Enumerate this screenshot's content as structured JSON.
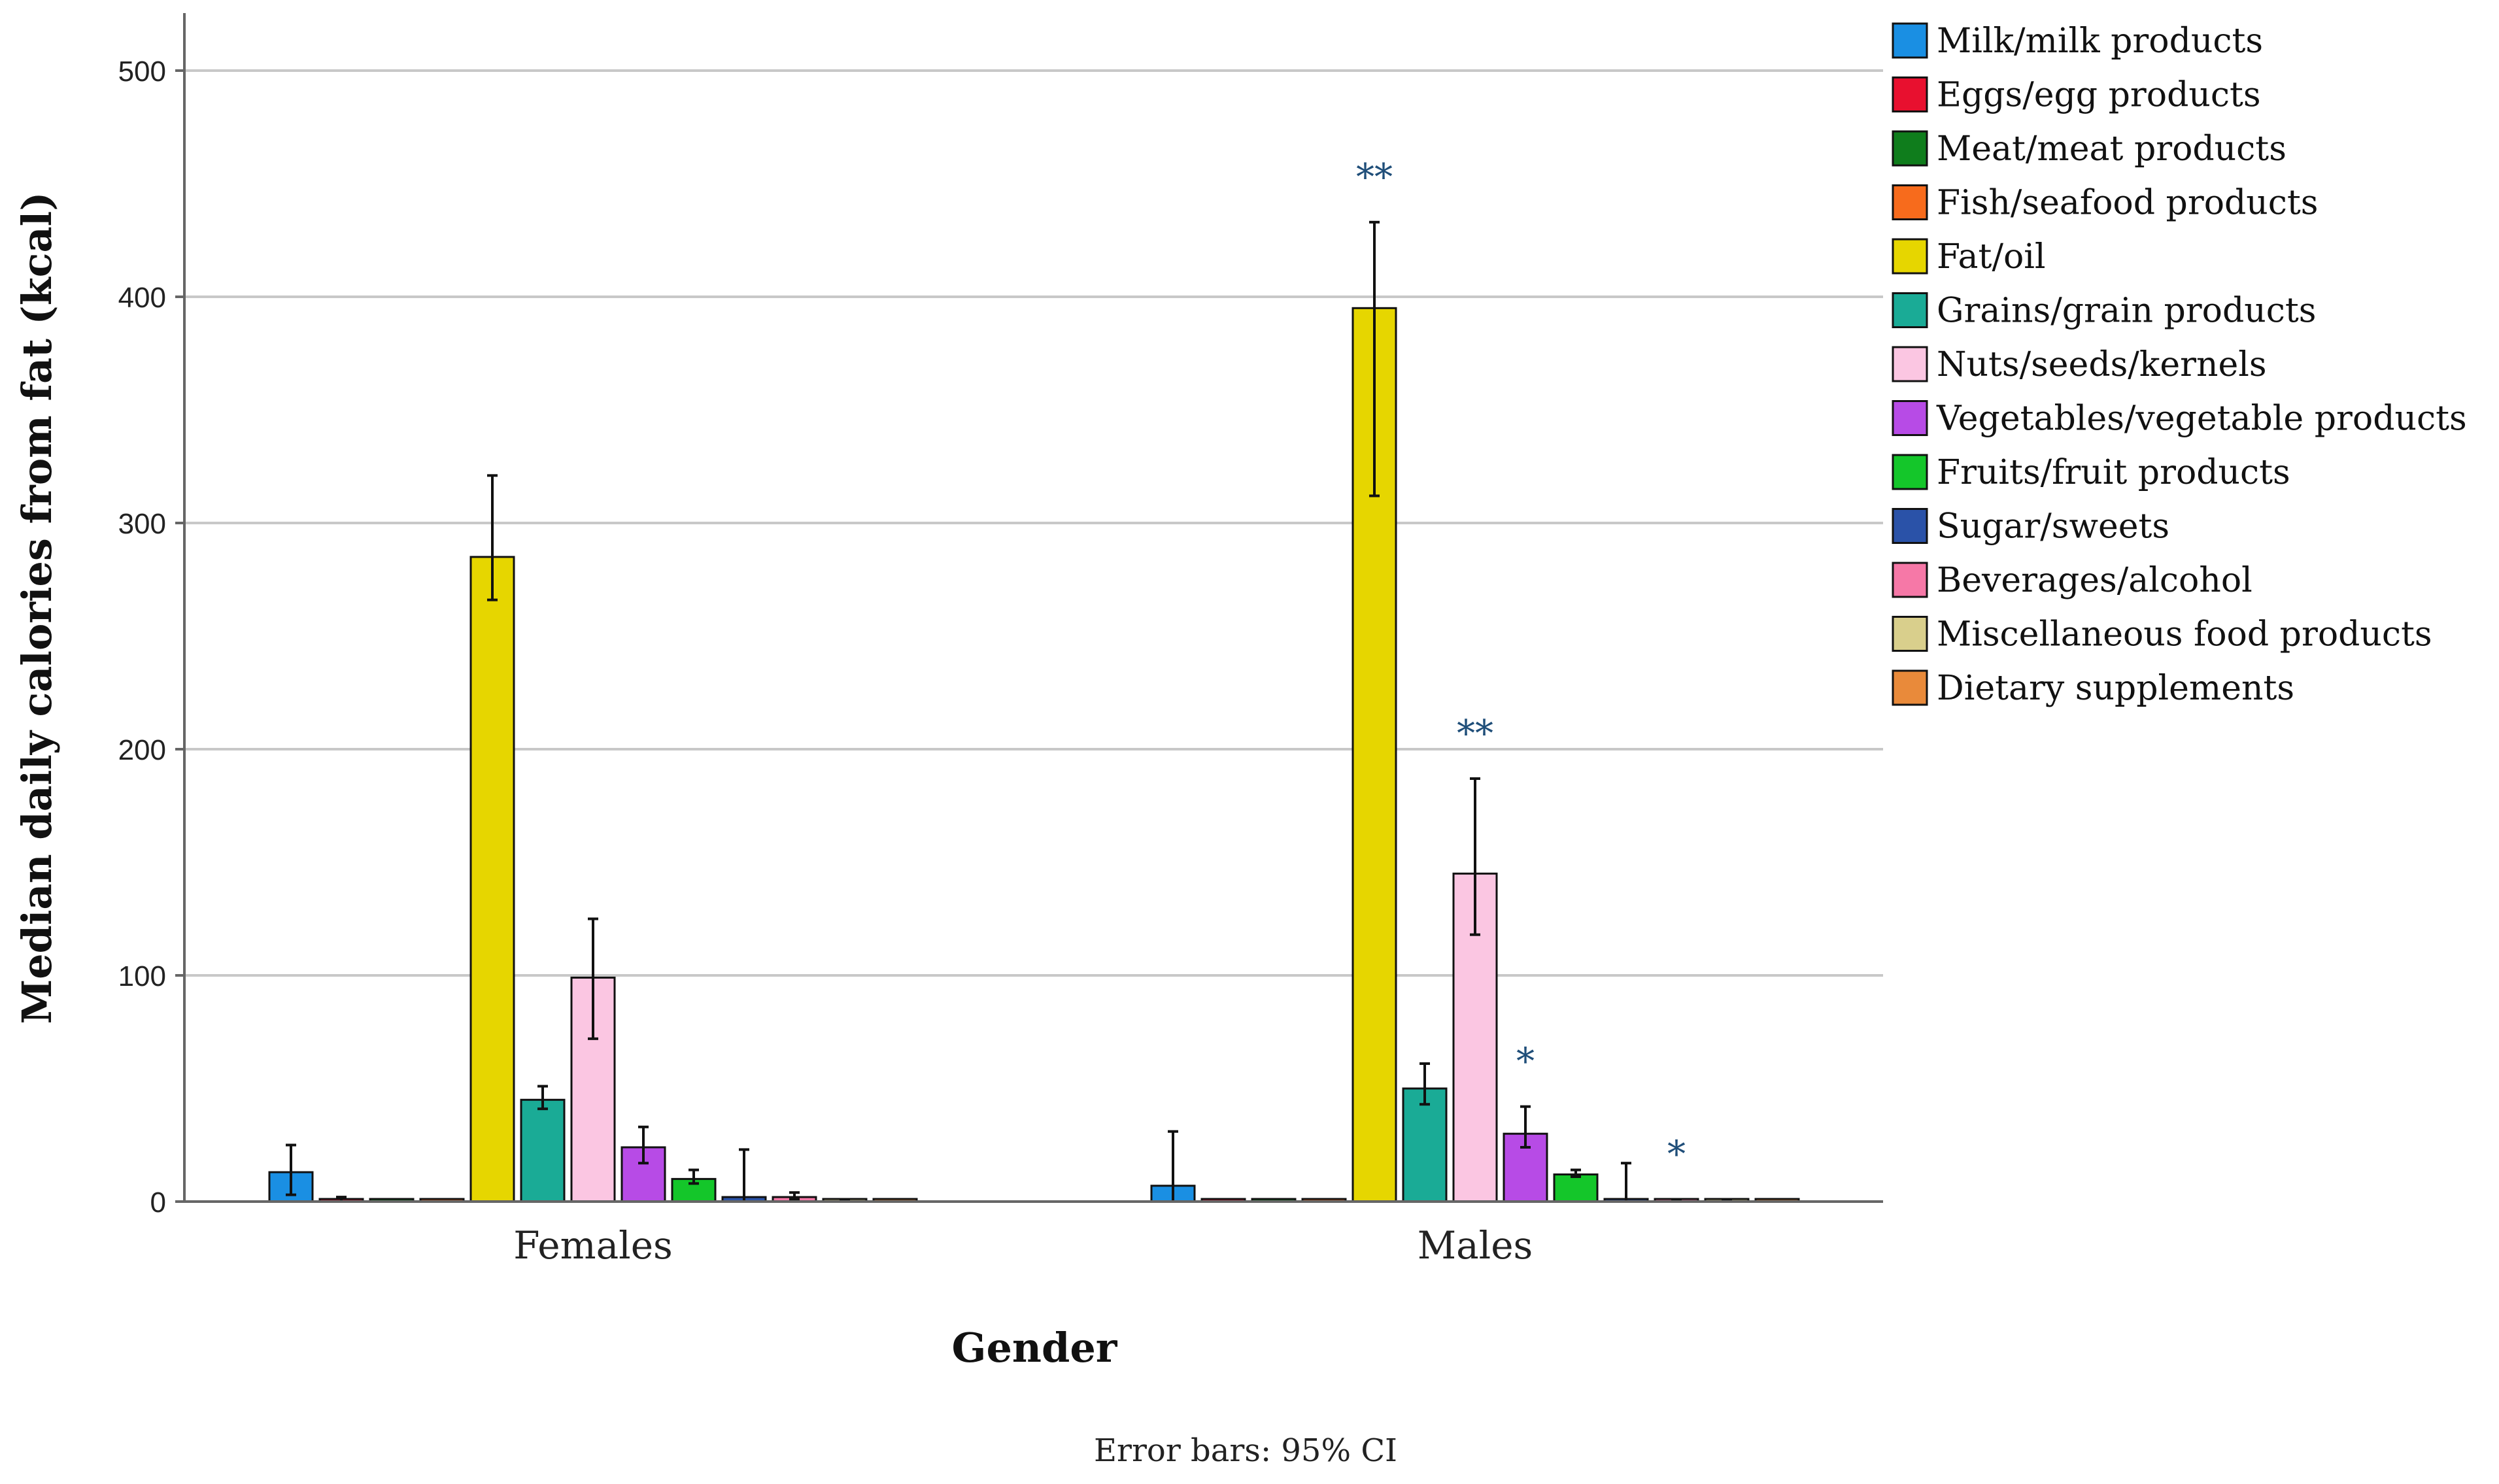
{
  "chart_data": {
    "type": "bar",
    "title": "",
    "xlabel": "Gender",
    "ylabel": "Median daily calories from fat (kcal)",
    "ylim": [
      0,
      525
    ],
    "yticks": [
      0,
      100,
      200,
      300,
      400,
      500
    ],
    "grid": true,
    "legend_position": "right",
    "note": "Error bars: 95% CI",
    "categories": [
      "Females",
      "Males"
    ],
    "series": [
      {
        "name": "Milk/milk products",
        "color": "#1a8fe3",
        "values": [
          13,
          7
        ],
        "ci_low": [
          3,
          0
        ],
        "ci_high": [
          25,
          31
        ],
        "sig": [
          "",
          ""
        ]
      },
      {
        "name": "Eggs/egg products",
        "color": "#e8102f",
        "values": [
          1,
          0
        ],
        "ci_low": [
          0,
          0
        ],
        "ci_high": [
          2,
          0
        ],
        "sig": [
          "",
          ""
        ]
      },
      {
        "name": "Meat/meat products",
        "color": "#0f7d1c",
        "values": [
          0,
          0
        ],
        "ci_low": [
          0,
          0
        ],
        "ci_high": [
          0,
          0
        ],
        "sig": [
          "",
          ""
        ]
      },
      {
        "name": "Fish/seafood products",
        "color": "#f76b1c",
        "values": [
          0,
          0
        ],
        "ci_low": [
          0,
          0
        ],
        "ci_high": [
          0,
          0
        ],
        "sig": [
          "",
          ""
        ]
      },
      {
        "name": "Fat/oil",
        "color": "#e6d600",
        "values": [
          285,
          395
        ],
        "ci_low": [
          266,
          312
        ],
        "ci_high": [
          321,
          433
        ],
        "sig": [
          "",
          "**"
        ]
      },
      {
        "name": "Grains/grain products",
        "color": "#1aab96",
        "values": [
          45,
          50
        ],
        "ci_low": [
          41,
          43
        ],
        "ci_high": [
          51,
          61
        ],
        "sig": [
          "",
          ""
        ]
      },
      {
        "name": "Nuts/seeds/kernels",
        "color": "#fbc6e2",
        "values": [
          99,
          145
        ],
        "ci_low": [
          72,
          118
        ],
        "ci_high": [
          125,
          187
        ],
        "sig": [
          "",
          "**"
        ]
      },
      {
        "name": "Vegetables/vegetable products",
        "color": "#b74be6",
        "values": [
          24,
          30
        ],
        "ci_low": [
          17,
          24
        ],
        "ci_high": [
          33,
          42
        ],
        "sig": [
          "",
          "*"
        ]
      },
      {
        "name": "Fruits/fruit products",
        "color": "#14c62a",
        "values": [
          10,
          12
        ],
        "ci_low": [
          8,
          11
        ],
        "ci_high": [
          14,
          14
        ],
        "sig": [
          "",
          ""
        ]
      },
      {
        "name": "Sugar/sweets",
        "color": "#2a52a8",
        "values": [
          2,
          0
        ],
        "ci_low": [
          0,
          0
        ],
        "ci_high": [
          23,
          17
        ],
        "sig": [
          "",
          ""
        ]
      },
      {
        "name": "Beverages/alcohol",
        "color": "#f678a7",
        "values": [
          2,
          0.5
        ],
        "ci_low": [
          1,
          0
        ],
        "ci_high": [
          4,
          1
        ],
        "sig": [
          "",
          "*"
        ]
      },
      {
        "name": "Miscellaneous food products",
        "color": "#d9cf8c",
        "values": [
          0.5,
          0.5
        ],
        "ci_low": [
          0,
          0
        ],
        "ci_high": [
          1,
          1
        ],
        "sig": [
          "",
          ""
        ]
      },
      {
        "name": "Dietary supplements",
        "color": "#e98a3a",
        "values": [
          0,
          0
        ],
        "ci_low": [
          0,
          0
        ],
        "ci_high": [
          0,
          0
        ],
        "sig": [
          "",
          ""
        ]
      }
    ]
  }
}
